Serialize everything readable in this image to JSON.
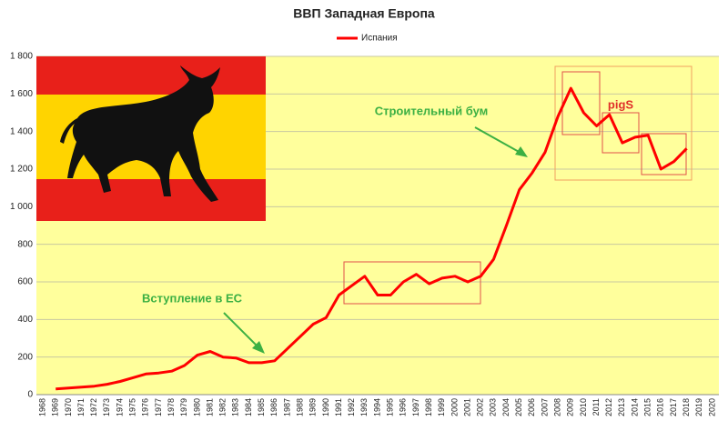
{
  "chart_data": {
    "type": "line",
    "title": "ВВП Западная Европа",
    "categories": [
      "1968",
      "1969",
      "1970",
      "1971",
      "1972",
      "1973",
      "1974",
      "1975",
      "1976",
      "1977",
      "1978",
      "1979",
      "1980",
      "1981",
      "1982",
      "1983",
      "1984",
      "1985",
      "1986",
      "1987",
      "1988",
      "1989",
      "1990",
      "1991",
      "1992",
      "1993",
      "1994",
      "1995",
      "1996",
      "1997",
      "1998",
      "1999",
      "2000",
      "2001",
      "2002",
      "2003",
      "2004",
      "2005",
      "2006",
      "2007",
      "2008",
      "2009",
      "2010",
      "2011",
      "2012",
      "2013",
      "2014",
      "2015",
      "2016",
      "2017",
      "2018",
      "2019",
      "2020"
    ],
    "series": [
      {
        "name": "Испания",
        "color": "#ff0000",
        "values": [
          null,
          30,
          35,
          40,
          45,
          55,
          70,
          90,
          110,
          115,
          125,
          155,
          210,
          230,
          200,
          195,
          170,
          170,
          180,
          245,
          310,
          375,
          410,
          530,
          580,
          630,
          530,
          530,
          600,
          640,
          590,
          620,
          630,
          600,
          630,
          720,
          900,
          1090,
          1180,
          1290,
          1480,
          1630,
          1500,
          1430,
          1490,
          1340,
          1370,
          1380,
          1200,
          1240,
          1310,
          null,
          null
        ]
      }
    ],
    "ylim": [
      0,
      1800
    ],
    "yticks": [
      0,
      200,
      400,
      600,
      800,
      {
        "value": 1000,
        "label": "1 000"
      },
      {
        "value": 1200,
        "label": "1 200"
      },
      {
        "value": 1400,
        "label": "1 400"
      },
      {
        "value": 1600,
        "label": "1 600"
      },
      {
        "value": 1800,
        "label": "1 800"
      }
    ],
    "grid": true,
    "legend": "top",
    "annotations": [
      "Строительный бум",
      "Вступление в ЕС",
      "pigS"
    ]
  }
}
